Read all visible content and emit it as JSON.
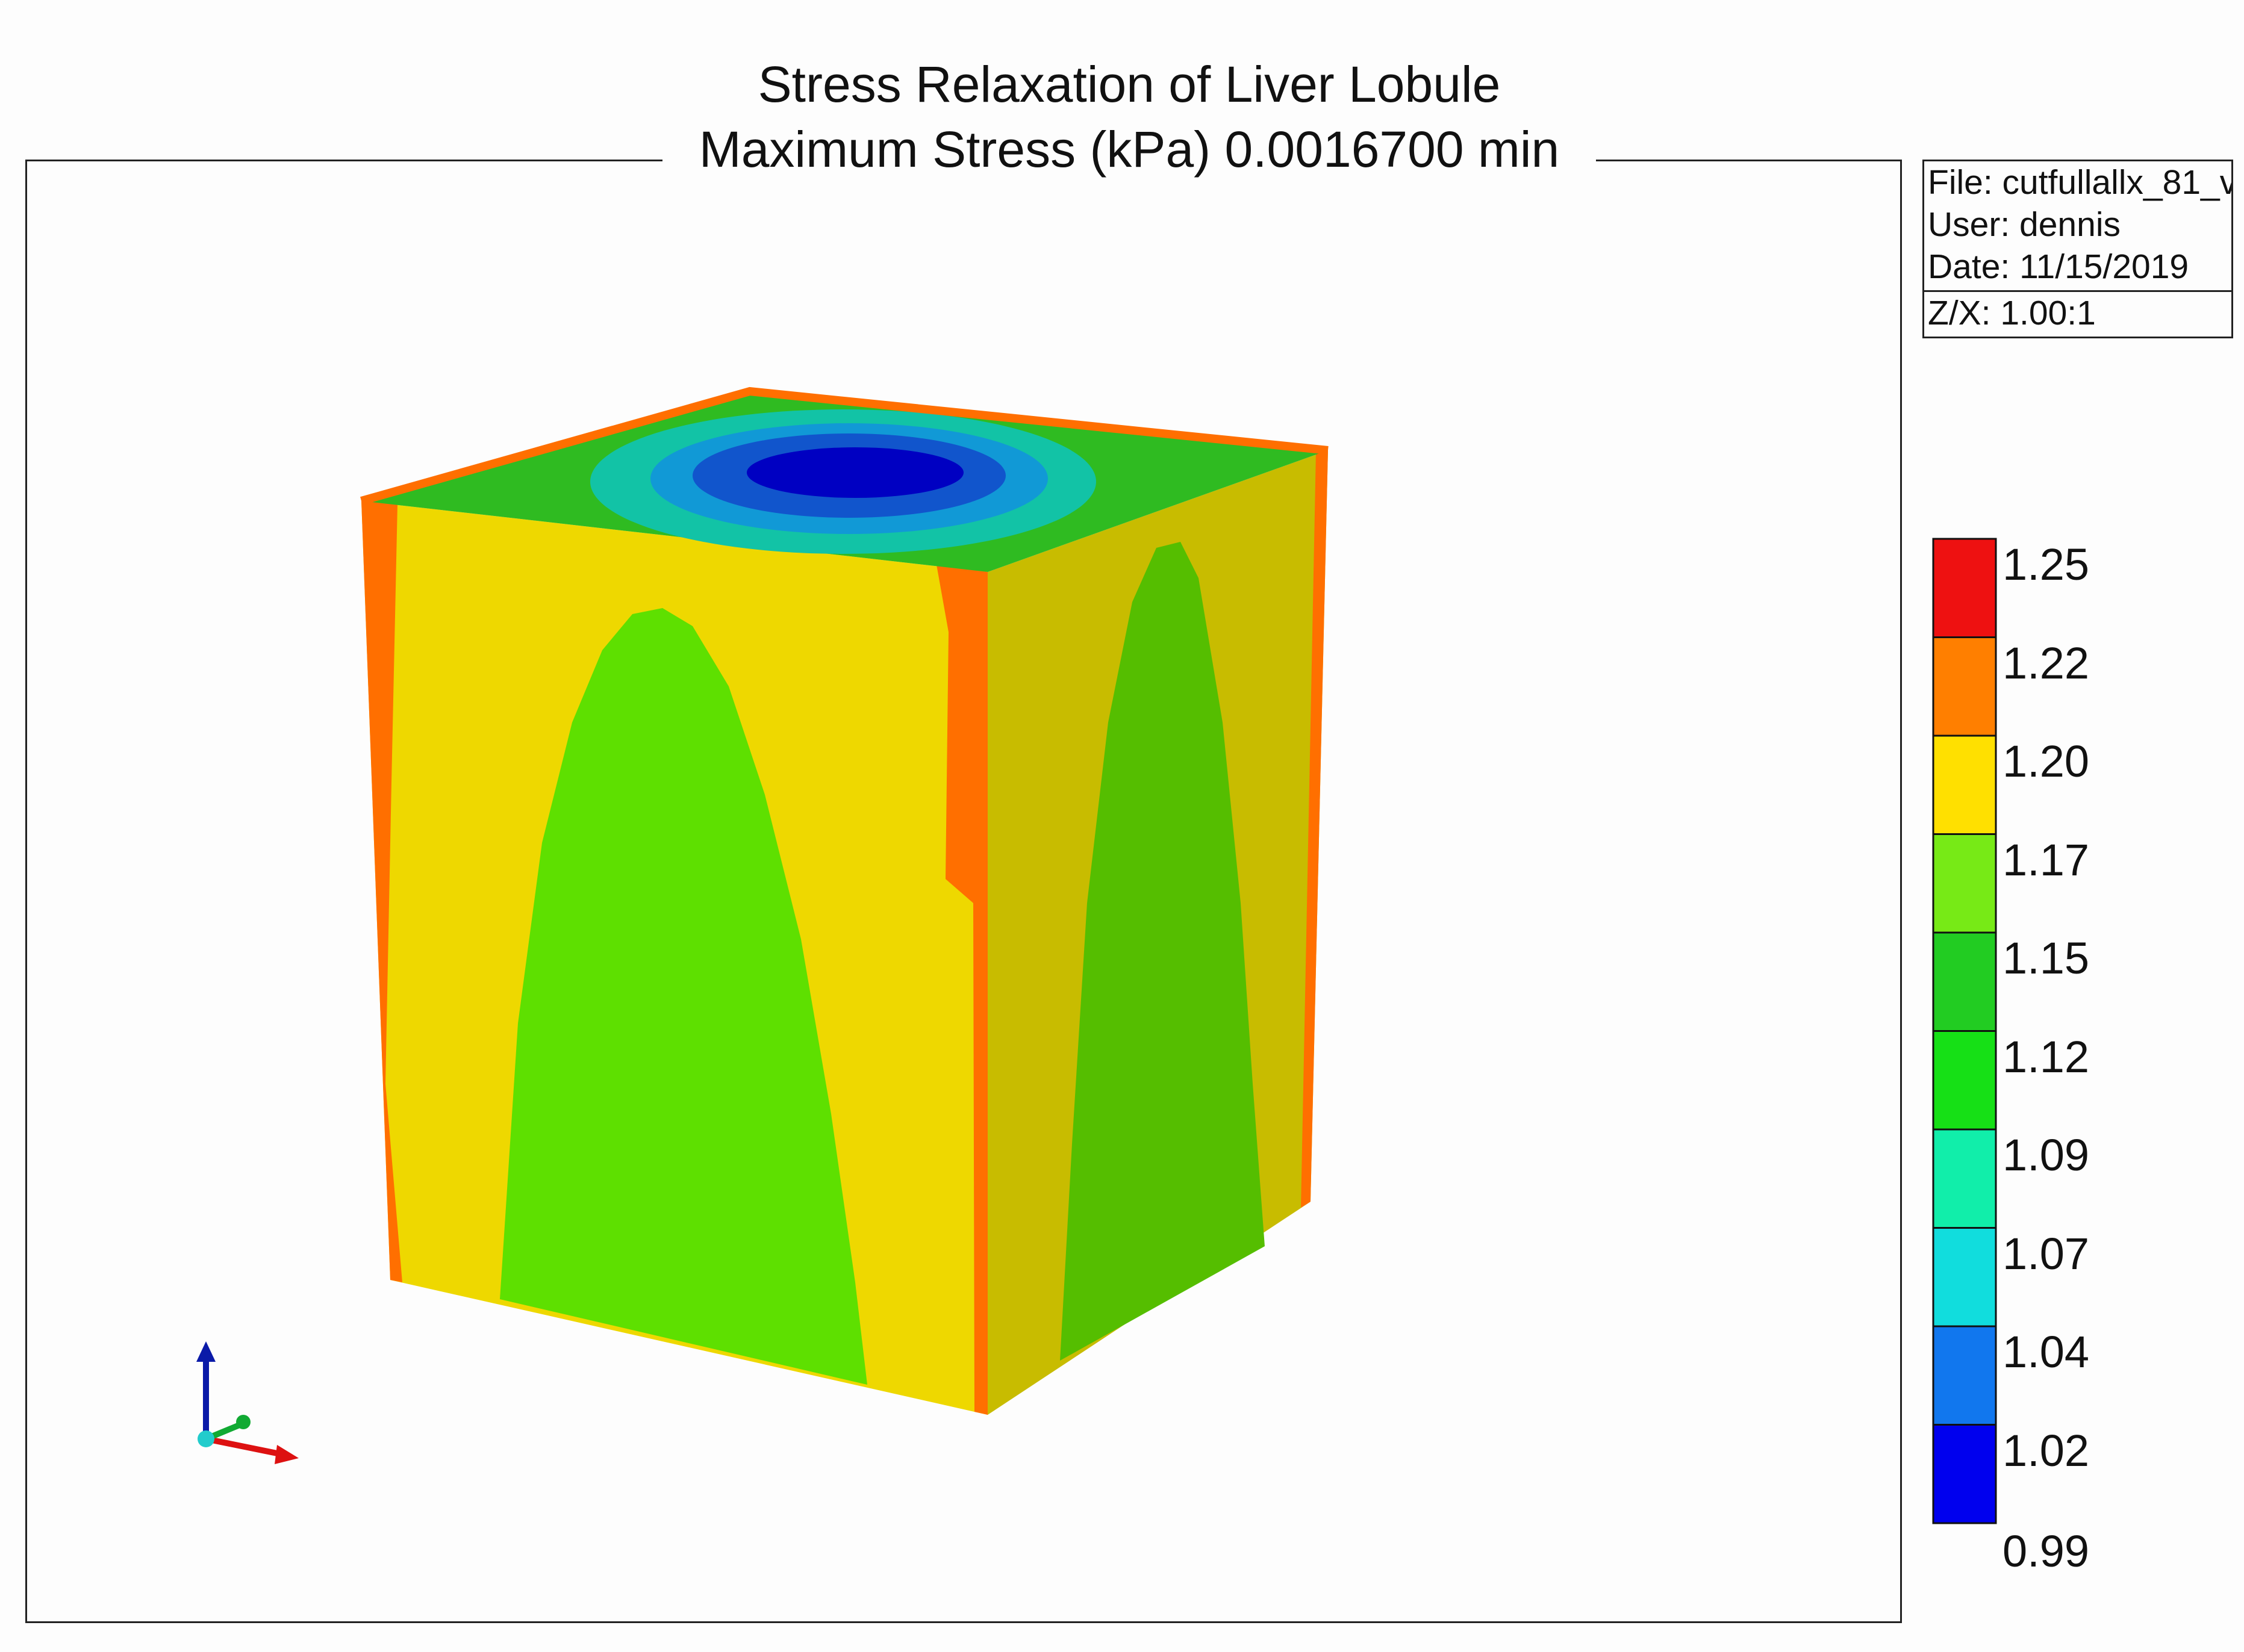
{
  "title": {
    "line1": "Stress Relaxation of Liver Lobule",
    "line2": "Maximum Stress (kPa) 0.0016700 min"
  },
  "info": {
    "file": "File: cutfullallx_81_v",
    "user": "User:  dennis",
    "date": "Date: 11/15/2019",
    "zx": "Z/X: 1.00:1"
  },
  "legend": {
    "labels": [
      "1.25",
      "1.22",
      "1.20",
      "1.17",
      "1.15",
      "1.12",
      "1.09",
      "1.07",
      "1.04",
      "1.02",
      "0.99"
    ],
    "colors": [
      "#ee1111",
      "#ff7f00",
      "#ffe000",
      "#77ea16",
      "#22cc22",
      "#16e016",
      "#11eeaa",
      "#11dddd",
      "#1177ee",
      "#0000ee"
    ]
  },
  "model": {
    "face_colors": {
      "edge_orange": "#ff6f00",
      "front_yellow": "#eed800",
      "front_green": "#5ee000",
      "side_yellow": "#c8bc00",
      "side_green": "#55be00",
      "top_green": "#2fbb21",
      "top_teal": "#12c3a6",
      "top_lightblue": "#1199d6",
      "top_blue": "#1155cc",
      "top_darkblue": "#0000c2"
    }
  },
  "axes_triad": {
    "colors": {
      "z": "#0a1aa8",
      "x": "#dd1111",
      "y": "#11aa33",
      "origin": "#22cccc"
    }
  }
}
